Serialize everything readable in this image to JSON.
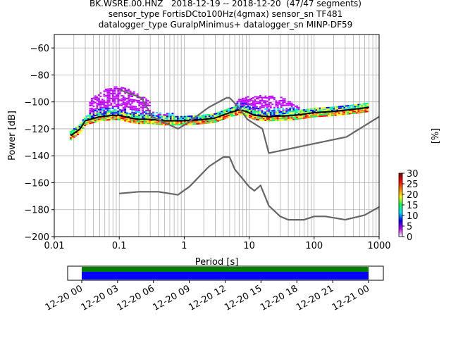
{
  "chart_data": [
    {
      "type": "heatmap",
      "title": [
        "BK.WSRE.00.HNZ   2018-12-19 -- 2018-12-20  (47/47 segments)",
        "sensor_type FortisDCto100Hz(4gmax) sensor_sn TF481",
        "datalogger_type GuralpMinimus+ datalogger_sn MINP-DF59"
      ],
      "xlabel": "Period [s]",
      "ylabel": "Power [dB]",
      "xscale": "log",
      "xlim": [
        0.01,
        1000
      ],
      "ylim": [
        -200,
        -50
      ],
      "xticks": [
        0.01,
        0.1,
        1,
        10,
        100,
        1000
      ],
      "xtick_labels": [
        "0.01",
        "0.1",
        "1",
        "10",
        "100",
        "1000"
      ],
      "yticks": [
        -200,
        -180,
        -160,
        -140,
        -120,
        -100,
        -80,
        -60
      ],
      "ytick_labels": [
        "−200",
        "−180",
        "−160",
        "−140",
        "−120",
        "−100",
        "−80",
        "−60"
      ],
      "grid": true,
      "colorbar": {
        "label": "[%]",
        "range": [
          0,
          30
        ],
        "ticks": [
          0,
          5,
          10,
          15,
          20,
          25,
          30
        ],
        "tick_labels": [
          "0",
          "5",
          "10",
          "15",
          "20",
          "25",
          "30"
        ],
        "colors": [
          "#ffffff",
          "#c000ff",
          "#0000ff",
          "#00e0ff",
          "#00ff60",
          "#ffff00",
          "#ff8000",
          "#ff0000",
          "#800000"
        ]
      },
      "series": [
        {
          "line_color": "#000000",
          "x": [
            0.018,
            0.025,
            0.03,
            0.05,
            0.08,
            0.1,
            0.15,
            0.2,
            0.3,
            0.5,
            1,
            2,
            3,
            5,
            7,
            9,
            12,
            20,
            50,
            100,
            200,
            500,
            700
          ],
          "y": [
            -125,
            -120,
            -114,
            -111,
            -110,
            -110,
            -112,
            -113,
            -113,
            -114,
            -114,
            -113,
            -112,
            -108,
            -106,
            -107,
            -110,
            -111,
            -110,
            -108,
            -107,
            -105,
            -104
          ]
        },
        {
          "line_color": "#666666",
          "x": [
            0.1,
            0.22,
            0.32,
            0.8,
            1.1,
            2.4,
            4.5,
            5,
            6.3,
            7.9,
            9.4,
            16,
            20,
            315,
            1000
          ],
          "y": [
            -91,
            -97,
            -111,
            -120,
            -116,
            -104,
            -97,
            -97,
            -102,
            -108,
            -113,
            -120,
            -138,
            -126,
            -111
          ]
        },
        {
          "line_color": "#666666",
          "x": [
            0.1,
            0.2,
            0.4,
            0.8,
            1.2,
            2.4,
            4,
            5,
            6,
            10,
            12,
            15,
            20,
            30,
            40,
            70,
            100,
            150,
            300,
            600,
            1000
          ],
          "y": [
            -168,
            -166.7,
            -166.7,
            -169,
            -163,
            -148,
            -141,
            -141,
            -150,
            -163,
            -166,
            -162,
            -177,
            -185,
            -187.5,
            -187.5,
            -185,
            -185,
            -187.5,
            -184,
            -178
          ]
        }
      ],
      "cloud_colors": [
        "#c000ff",
        "#0000ff",
        "#00e0ff",
        "#00ff60",
        "#ffff00",
        "#ff8000",
        "#ff0000"
      ]
    },
    {
      "type": "bar",
      "xlim": [
        "12-20 00",
        "12-21 00"
      ],
      "xtick_labels": [
        "12-20 00",
        "12-20 03",
        "12-20 06",
        "12-20 09",
        "12-20 12",
        "12-20 15",
        "12-20 18",
        "12-20 21",
        "12-21 00"
      ],
      "coverage": [
        {
          "color": "#008000",
          "start": "12-20 00",
          "end": "12-21 00"
        },
        {
          "color": "#0000ff",
          "start": "12-20 00",
          "end": "12-21 00"
        }
      ]
    }
  ]
}
